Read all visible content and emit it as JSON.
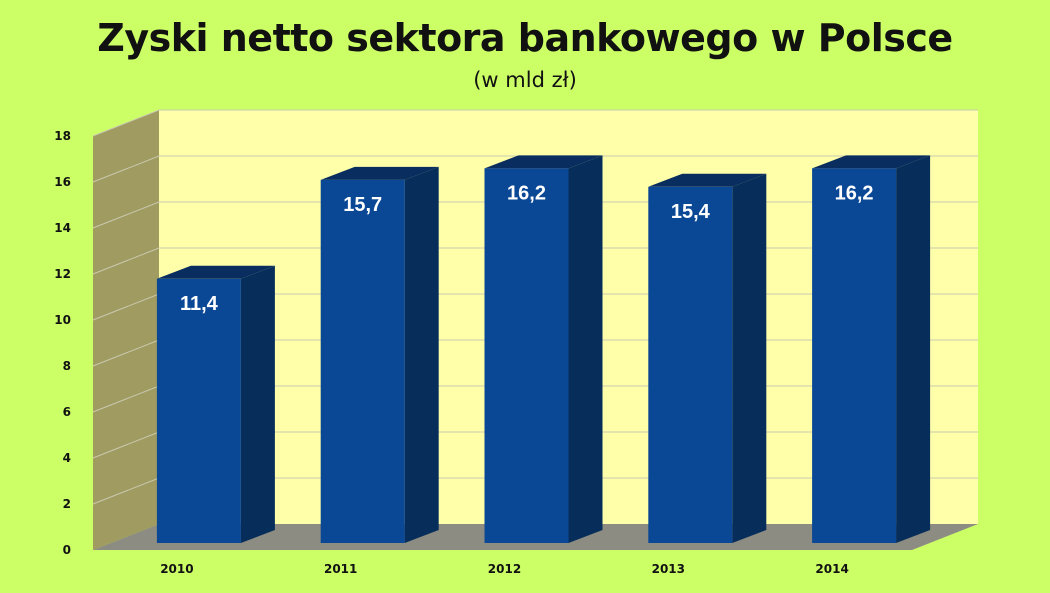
{
  "chart_data": {
    "type": "bar",
    "title": "Zyski netto sektora bankowego w Polsce",
    "subtitle": "(w mld zł)",
    "categories": [
      "2010",
      "2011",
      "2012",
      "2013",
      "2014"
    ],
    "values": [
      11.4,
      15.7,
      16.2,
      15.4,
      16.2
    ],
    "value_labels": [
      "11,4",
      "15,7",
      "16,2",
      "15,4",
      "16,2"
    ],
    "ylim": [
      0,
      18
    ],
    "yticks": [
      "0",
      "2",
      "4",
      "6",
      "8",
      "10",
      "12",
      "14",
      "16",
      "18"
    ],
    "grid": true,
    "style": "3d",
    "colors": {
      "background": "#ccff66",
      "plot_wall": "#ffffaa",
      "side_wall": "#a09b60",
      "floor": "#8c8c82",
      "bar_front": "#0a4896",
      "bar_side": "#072e5a",
      "bar_top": "#082d5e",
      "grid": "#c9c9b0"
    }
  }
}
